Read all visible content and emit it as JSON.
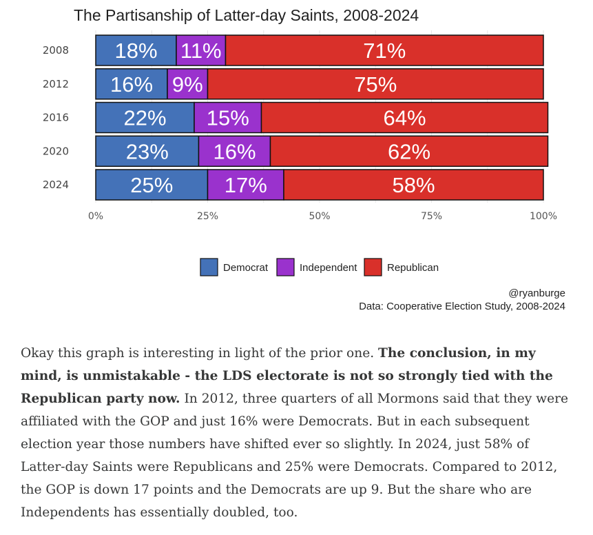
{
  "chart_data": {
    "type": "bar",
    "orientation": "horizontal",
    "stacked": true,
    "title": "The Partisanship of Latter-day Saints, 2008-2024",
    "categories": [
      "2008",
      "2012",
      "2016",
      "2020",
      "2024"
    ],
    "series": [
      {
        "name": "Democrat",
        "color": "#4472B8",
        "values": [
          18,
          16,
          22,
          23,
          25
        ]
      },
      {
        "name": "Independent",
        "color": "#9A32CD",
        "values": [
          11,
          9,
          15,
          16,
          17
        ]
      },
      {
        "name": "Republican",
        "color": "#D9302A",
        "values": [
          71,
          75,
          64,
          62,
          58
        ]
      }
    ],
    "xlim": [
      0,
      100
    ],
    "x_ticks": [
      0,
      25,
      50,
      75,
      100
    ],
    "x_tick_labels": [
      "0%",
      "25%",
      "50%",
      "75%",
      "100%"
    ],
    "value_suffix": "%",
    "legend": [
      "Democrat",
      "Independent",
      "Republican"
    ],
    "legend_position": "bottom",
    "grid": true,
    "credit": "@ryanburge",
    "source": "Data: Cooperative Election Study, 2008-2024"
  },
  "article": {
    "p1": "Okay this graph is interesting in light of the prior one. ",
    "p1_bold": "The conclusion, in my mind, is unmistakable - the LDS electorate is not so strongly tied with the Republican party now.",
    "p1_rest": " In 2012, three quarters of all Mormons said that they were affiliated with the GOP and just 16% were Democrats. But in each subsequent election year those numbers have shifted ever so slightly. In 2024, just 58% of Latter-day Saints were Republicans and 25% were Democrats. Compared to 2012, the GOP is down 17 points and the Democrats are up 9. But the share who are Independents has essentially doubled, too."
  }
}
